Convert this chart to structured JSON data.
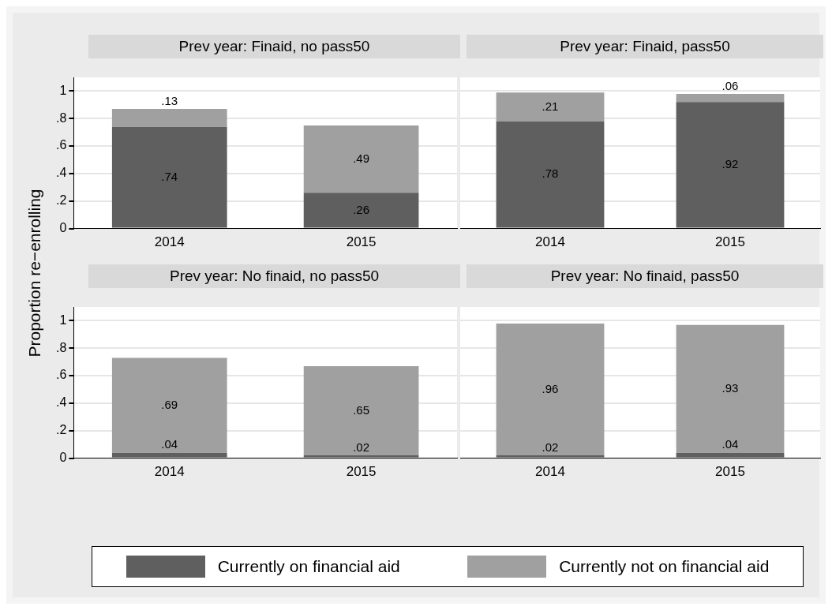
{
  "chart_data": [
    {
      "type": "bar",
      "stacked": true,
      "title": "Prev year: Finaid, no pass50",
      "ylabel": "Proportion re−enrolling",
      "legend": "bottom",
      "grid": "y",
      "categories": [
        "2014",
        "2015"
      ],
      "ylim": [
        0,
        1.1
      ],
      "yticks": [
        {
          "value": 0,
          "label": "0"
        },
        {
          "value": 0.2,
          "label": ".2"
        },
        {
          "value": 0.4,
          "label": ".4"
        },
        {
          "value": 0.6,
          "label": ".6"
        },
        {
          "value": 0.8,
          "label": ".8"
        },
        {
          "value": 1,
          "label": "1"
        }
      ],
      "series": [
        {
          "name": "Currently on financial aid",
          "color": "#5f5f5f",
          "values": [
            0.74,
            0.26
          ],
          "value_labels": [
            ".74",
            ".26"
          ]
        },
        {
          "name": "Currently not on financial aid",
          "color": "#a0a0a0",
          "values": [
            0.13,
            0.49
          ],
          "value_labels": [
            ".13",
            ".49"
          ]
        }
      ]
    },
    {
      "type": "bar",
      "stacked": true,
      "title": "Prev year: Finaid, pass50",
      "tick_labels": "x",
      "grid": "y",
      "categories": [
        "2014",
        "2015"
      ],
      "ylim": [
        0,
        1.1
      ],
      "yticks": [
        {
          "value": 0,
          "label": null
        },
        {
          "value": 0.2,
          "label": null
        },
        {
          "value": 0.4,
          "label": null
        },
        {
          "value": 0.6,
          "label": null
        },
        {
          "value": 0.8,
          "label": null
        },
        {
          "value": 1,
          "label": null
        }
      ],
      "series": [
        {
          "color": "#5f5f5f",
          "values": [
            0.78,
            0.92
          ],
          "value_labels": [
            ".78",
            ".92"
          ]
        },
        {
          "color": "#a0a0a0",
          "values": [
            0.21,
            0.06
          ],
          "value_labels": [
            ".21",
            ".06"
          ]
        }
      ]
    },
    {
      "type": "bar",
      "stacked": true,
      "title": "Prev year: No finaid, no pass50",
      "grid": "y",
      "categories": [
        "2014",
        "2015"
      ],
      "ylim": [
        0,
        1.1
      ],
      "yticks": [
        {
          "value": 0,
          "label": "0"
        },
        {
          "value": 0.2,
          "label": ".2"
        },
        {
          "value": 0.4,
          "label": ".4"
        },
        {
          "value": 0.6,
          "label": ".6"
        },
        {
          "value": 0.8,
          "label": ".8"
        },
        {
          "value": 1,
          "label": "1"
        }
      ],
      "series": [
        {
          "color": "#5f5f5f",
          "values": [
            0.04,
            0.02
          ],
          "value_labels": [
            ".04",
            ".02"
          ]
        },
        {
          "color": "#a0a0a0",
          "values": [
            0.69,
            0.65
          ],
          "value_labels": [
            ".69",
            ".65"
          ]
        }
      ]
    },
    {
      "type": "bar",
      "stacked": true,
      "title": "Prev year: No finaid, pass50",
      "tick_labels": "x",
      "grid": "y",
      "categories": [
        "2014",
        "2015"
      ],
      "ylim": [
        0,
        1.1
      ],
      "yticks": [
        {
          "value": 0,
          "label": null
        },
        {
          "value": 0.2,
          "label": null
        },
        {
          "value": 0.4,
          "label": null
        },
        {
          "value": 0.6,
          "label": null
        },
        {
          "value": 0.8,
          "label": null
        },
        {
          "value": 1,
          "label": null
        }
      ],
      "series": [
        {
          "color": "#5f5f5f",
          "values": [
            0.02,
            0.04
          ],
          "value_labels": [
            ".02",
            ".04"
          ]
        },
        {
          "color": "#a0a0a0",
          "values": [
            0.96,
            0.93
          ],
          "value_labels": [
            ".96",
            ".93"
          ]
        }
      ]
    }
  ]
}
